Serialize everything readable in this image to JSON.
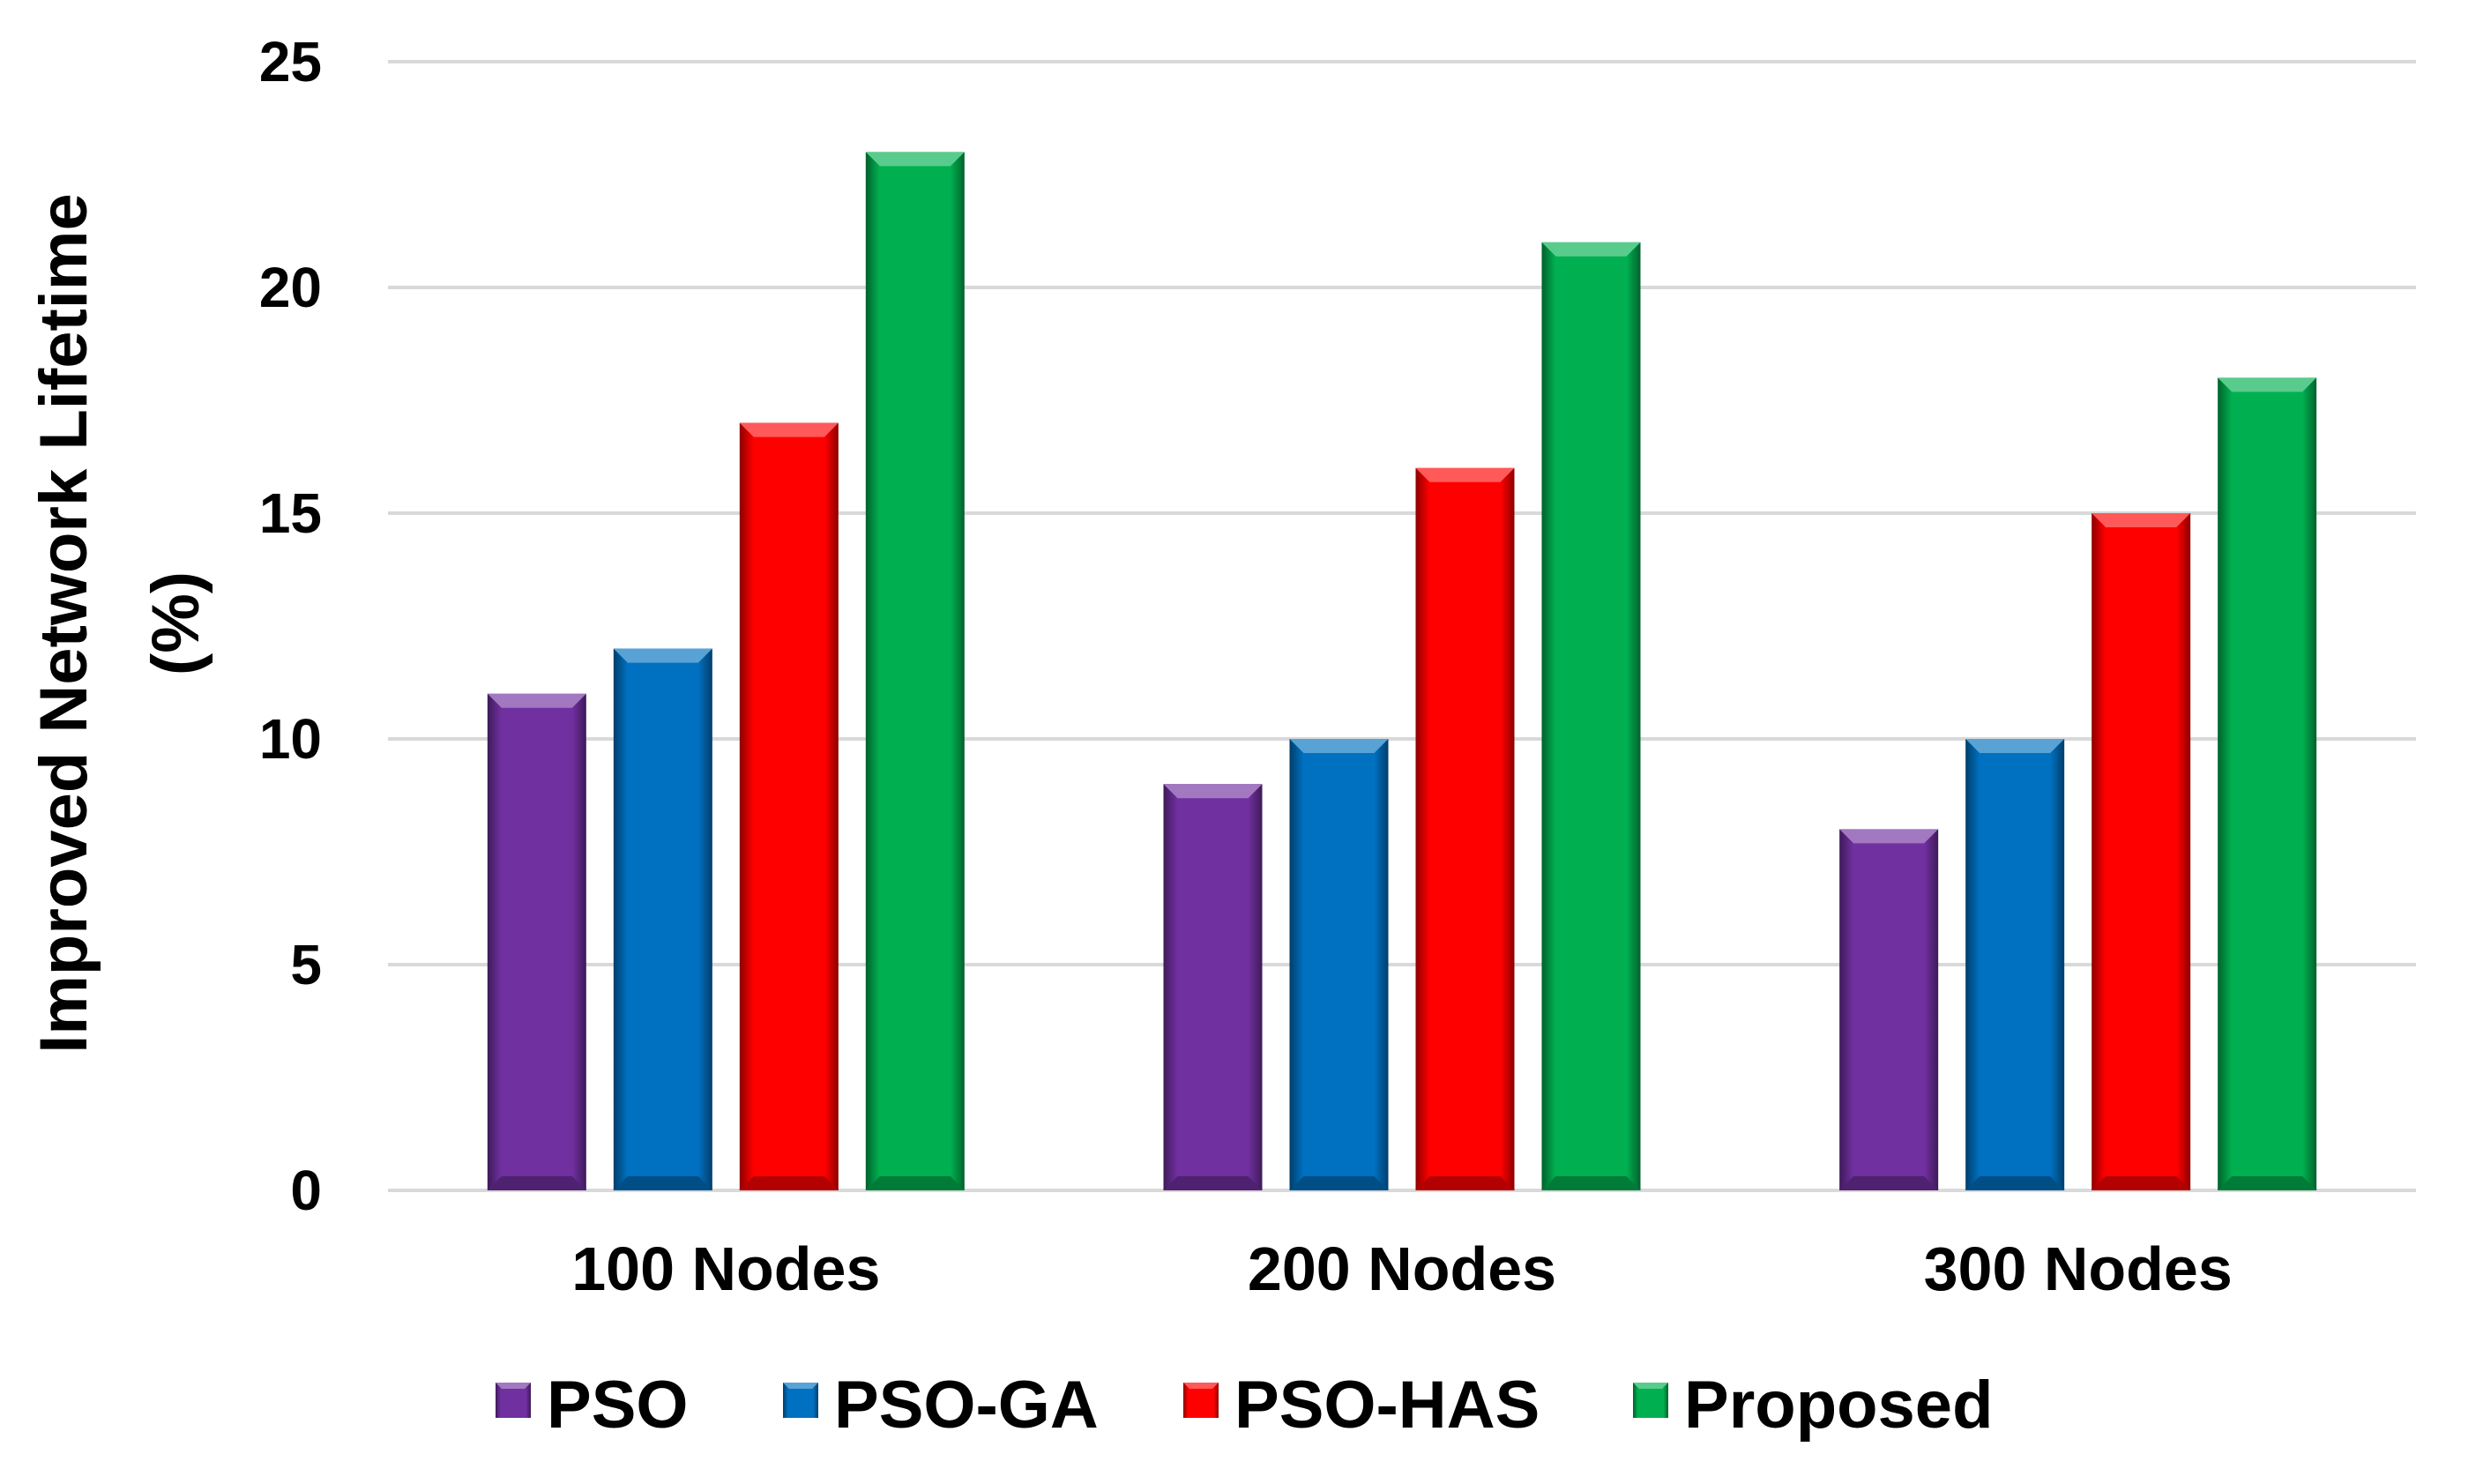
{
  "chart_data": {
    "type": "bar",
    "title": "",
    "xlabel": "",
    "ylabel_lines": [
      "Improved Network Lifetime",
      "(%)"
    ],
    "ylim": [
      0,
      25
    ],
    "yticks": [
      0,
      5,
      10,
      15,
      20,
      25
    ],
    "grid": true,
    "legend_position": "bottom",
    "categories": [
      "100 Nodes",
      "200 Nodes",
      "300 Nodes"
    ],
    "series": [
      {
        "name": "PSO",
        "values": [
          11,
          9,
          8
        ],
        "color": "#7030a0"
      },
      {
        "name": "PSO-GA",
        "values": [
          12,
          10,
          10
        ],
        "color": "#0070c0"
      },
      {
        "name": "PSO-HAS",
        "values": [
          17,
          16,
          15
        ],
        "color": "#ff0000"
      },
      {
        "name": "Proposed",
        "values": [
          23,
          21,
          18
        ],
        "color": "#00b050"
      }
    ]
  }
}
